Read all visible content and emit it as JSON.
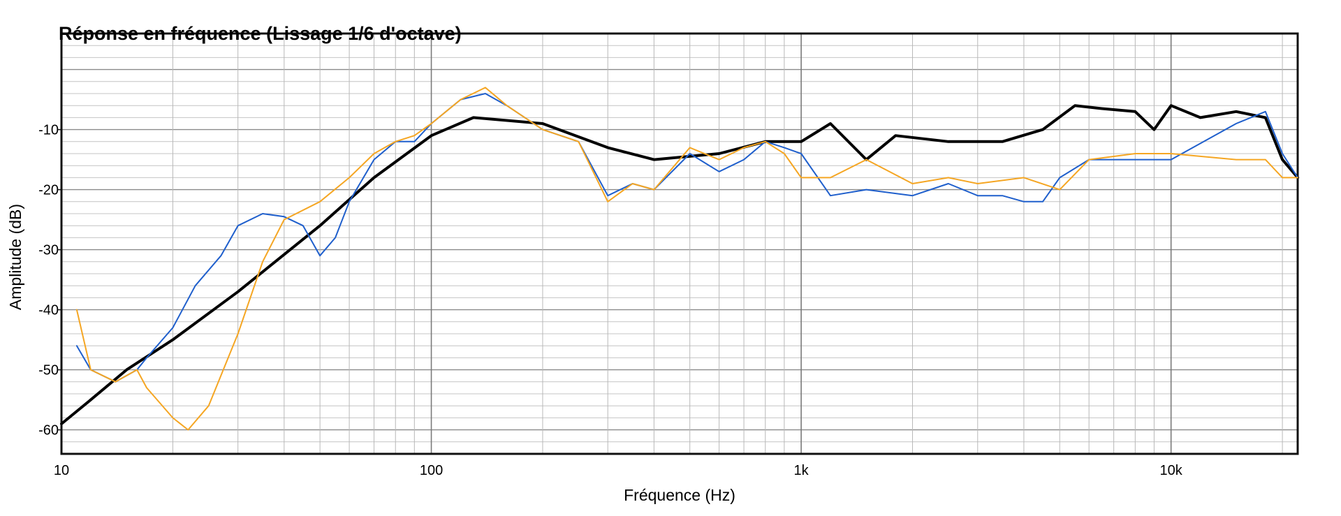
{
  "chart_data": {
    "type": "line",
    "title": "Réponse en fréquence (Lissage 1/6 d'octave)",
    "xlabel": "Fréquence (Hz)",
    "ylabel": "Amplitude (dB)",
    "x_scale": "log",
    "xlim": [
      10,
      22000
    ],
    "ylim": [
      -64,
      6
    ],
    "grid": true,
    "legend": "none",
    "x_ticks": [
      {
        "value": 10,
        "label": "10"
      },
      {
        "value": 100,
        "label": "100"
      },
      {
        "value": 1000,
        "label": "1k"
      },
      {
        "value": 10000,
        "label": "10k"
      }
    ],
    "y_ticks": [
      {
        "value": -10,
        "label": "-10"
      },
      {
        "value": -20,
        "label": "-20"
      },
      {
        "value": -30,
        "label": "-30"
      },
      {
        "value": -40,
        "label": "-40"
      },
      {
        "value": -50,
        "label": "-50"
      },
      {
        "value": -60,
        "label": "-60"
      }
    ],
    "series": [
      {
        "color": "#000000",
        "x": [
          10,
          12,
          15,
          20,
          30,
          50,
          70,
          100,
          130,
          200,
          300,
          400,
          600,
          800,
          1000,
          1200,
          1500,
          1800,
          2500,
          3500,
          4500,
          5500,
          6500,
          8000,
          9000,
          10000,
          12000,
          15000,
          18000,
          20000,
          22000
        ],
        "y": [
          -59,
          -55,
          -50,
          -45,
          -37,
          -26,
          -18,
          -11,
          -8,
          -9,
          -13,
          -15,
          -14,
          -12,
          -12,
          -9,
          -15,
          -11,
          -12,
          -12,
          -10,
          -6,
          -6.5,
          -7,
          -10,
          -6,
          -8,
          -7,
          -8,
          -15,
          -18
        ]
      },
      {
        "color": "#1f5fcc",
        "x": [
          11,
          12,
          14,
          16,
          17,
          20,
          23,
          27,
          30,
          35,
          40,
          45,
          50,
          55,
          60,
          70,
          80,
          90,
          100,
          120,
          140,
          160,
          200,
          250,
          300,
          350,
          400,
          500,
          600,
          700,
          800,
          900,
          1000,
          1200,
          1500,
          2000,
          2500,
          3000,
          3500,
          4000,
          4500,
          5000,
          6000,
          8000,
          10000,
          15000,
          18000,
          20000,
          22000
        ],
        "y": [
          -46,
          -50,
          -52,
          -50,
          -48,
          -43,
          -36,
          -31,
          -26,
          -24,
          -24.5,
          -26,
          -31,
          -28,
          -22,
          -15,
          -12,
          -12,
          -9,
          -5,
          -4,
          -6,
          -10,
          -12,
          -21,
          -19,
          -20,
          -14,
          -17,
          -15,
          -12,
          -13,
          -14,
          -21,
          -20,
          -21,
          -19,
          -21,
          -21,
          -22,
          -22,
          -18,
          -15,
          -15,
          -15,
          -9,
          -7,
          -14,
          -18
        ]
      },
      {
        "color": "#f5a623",
        "x": [
          11,
          12,
          14,
          16,
          17,
          20,
          22,
          25,
          30,
          35,
          40,
          50,
          60,
          70,
          80,
          90,
          100,
          120,
          140,
          160,
          200,
          250,
          300,
          350,
          400,
          500,
          600,
          700,
          800,
          900,
          1000,
          1200,
          1500,
          2000,
          2500,
          3000,
          4000,
          5000,
          6000,
          8000,
          10000,
          15000,
          18000,
          20000,
          22000
        ],
        "y": [
          -40,
          -50,
          -52,
          -50,
          -53,
          -58,
          -60,
          -56,
          -44,
          -32,
          -25,
          -22,
          -18,
          -14,
          -12,
          -11,
          -9,
          -5,
          -3,
          -6,
          -10,
          -12,
          -22,
          -19,
          -20,
          -13,
          -15,
          -13,
          -12,
          -14,
          -18,
          -18,
          -15,
          -19,
          -18,
          -19,
          -18,
          -20,
          -15,
          -14,
          -14,
          -15,
          -15,
          -18,
          -18
        ]
      }
    ]
  }
}
